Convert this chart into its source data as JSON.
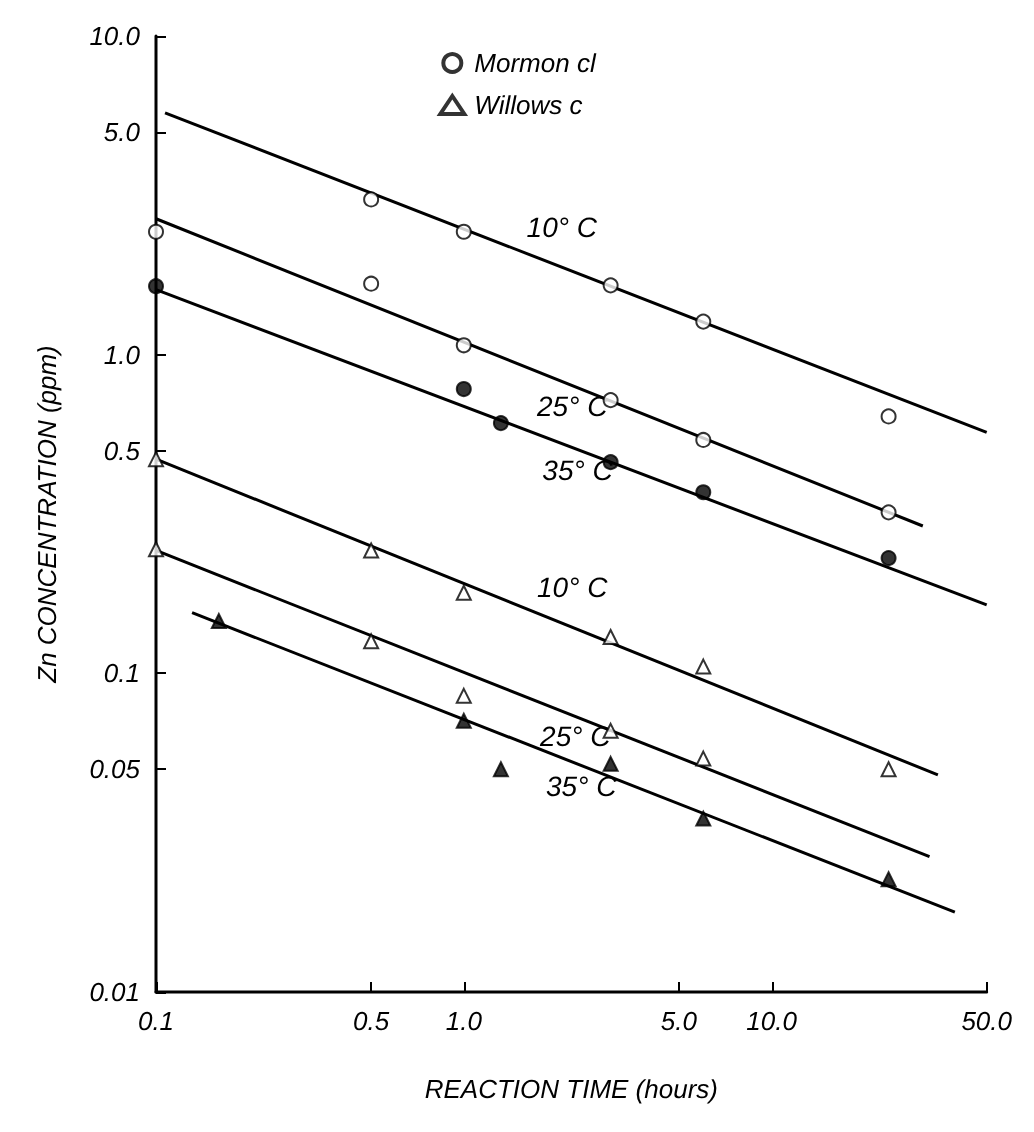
{
  "chart_data": {
    "type": "scatter",
    "xlabel": "REACTION TIME (hours)",
    "ylabel": "Zn CONCENTRATION (ppm)",
    "log": "xy",
    "grid": false,
    "legend": "top",
    "xlim": [
      0.1,
      50
    ],
    "ylim": [
      0.01,
      10
    ],
    "xticks": [
      0.1,
      0.5,
      {
        "value": 1,
        "label": "1.0"
      },
      {
        "value": 5,
        "label": "5.0"
      },
      {
        "value": 10,
        "label": "10.0"
      },
      {
        "value": 50,
        "label": "50.0"
      }
    ],
    "yticks": [
      0.01,
      0.05,
      0.1,
      0.5,
      {
        "value": 1,
        "label": "1.0"
      },
      {
        "value": 5,
        "label": "5.0"
      },
      {
        "value": 10,
        "label": "10.0"
      }
    ],
    "series": [
      {
        "name": "Mormon cl",
        "marker": "circle",
        "color": "#ffffff",
        "x": [
          0.5,
          1,
          3,
          6,
          24
        ],
        "values": [
          3.07,
          2.43,
          1.65,
          1.27,
          0.64
        ]
      },
      {
        "marker": "circle",
        "color": "#ffffff",
        "x": [
          0.1,
          0.5,
          1,
          3,
          6,
          24
        ],
        "values": [
          2.43,
          1.67,
          1.07,
          0.72,
          0.54,
          0.32
        ]
      },
      {
        "marker": "circle",
        "color": "#000000",
        "x": [
          0.1,
          1,
          1.32,
          3,
          6,
          24
        ],
        "values": [
          1.64,
          0.78,
          0.61,
          0.46,
          0.37,
          0.23
        ]
      },
      {
        "name": "Willows c",
        "marker": "triangle",
        "color": "#ffffff",
        "x": [
          0.1,
          0.5,
          1,
          3,
          6,
          24
        ],
        "values": [
          0.47,
          0.243,
          0.179,
          0.13,
          0.105,
          0.05
        ]
      },
      {
        "marker": "triangle",
        "color": "#ffffff",
        "x": [
          0.1,
          0.5,
          1,
          3,
          6
        ],
        "values": [
          0.245,
          0.126,
          0.085,
          0.066,
          0.054
        ]
      },
      {
        "marker": "triangle",
        "color": "#000000",
        "x": [
          0.16,
          1,
          1.32,
          3,
          6,
          24
        ],
        "values": [
          0.146,
          0.071,
          0.05,
          0.052,
          0.035,
          0.0226
        ]
      },
      {
        "type": "line",
        "marker": "none",
        "color": "#000000",
        "x": [
          0.107,
          50
        ],
        "values": [
          5.74,
          0.57
        ]
      },
      {
        "type": "line",
        "marker": "none",
        "color": "#000000",
        "x": [
          0.1,
          31
        ],
        "values": [
          2.67,
          0.29
        ]
      },
      {
        "type": "line",
        "marker": "none",
        "color": "#000000",
        "x": [
          0.1,
          50
        ],
        "values": [
          1.6,
          0.164
        ]
      },
      {
        "type": "line",
        "marker": "none",
        "color": "#000000",
        "x": [
          0.1,
          34.7
        ],
        "values": [
          0.47,
          0.048
        ]
      },
      {
        "type": "line",
        "marker": "none",
        "color": "#000000",
        "x": [
          0.1,
          32.6
        ],
        "values": [
          0.243,
          0.0266
        ]
      },
      {
        "type": "line",
        "marker": "none",
        "color": "#000000",
        "x": [
          0.131,
          39.4
        ],
        "values": [
          0.155,
          0.0178
        ]
      }
    ],
    "annotations": [
      {
        "text": "10° C",
        "x": 1.6,
        "y": 2.08
      },
      {
        "text": "25° C",
        "x": 1.73,
        "y": 0.885
      },
      {
        "text": "35° C",
        "x": 1.8,
        "y": 0.555
      },
      {
        "text": "10° C",
        "x": 1.73,
        "y": 0.155
      },
      {
        "text": "25° C",
        "x": 1.77,
        "y": 0.081
      },
      {
        "text": "35° C",
        "x": 1.85,
        "y": 0.0568
      }
    ]
  }
}
